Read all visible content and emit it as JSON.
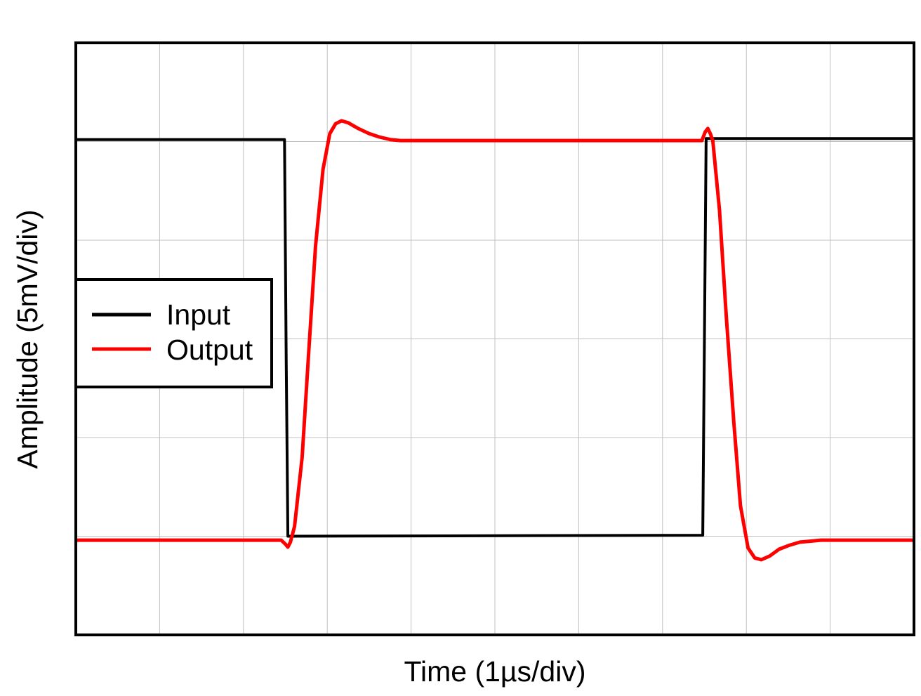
{
  "chart_data": {
    "type": "line",
    "title": "",
    "xlabel": "Time (1µs/div)",
    "ylabel": "Amplitude (5mV/div)",
    "xlim": [
      0,
      10
    ],
    "ylim": [
      0,
      30
    ],
    "x_divisions": 10,
    "y_divisions": 6,
    "grid": true,
    "legend_position": "center-left",
    "series": [
      {
        "name": "Input",
        "color": "#000000",
        "points": [
          [
            0,
            25.1
          ],
          [
            2.49,
            25.1
          ],
          [
            2.51,
            14.0
          ],
          [
            2.53,
            5.0
          ],
          [
            7.48,
            5.05
          ],
          [
            7.5,
            15.0
          ],
          [
            7.52,
            25.15
          ],
          [
            10,
            25.15
          ]
        ]
      },
      {
        "name": "Output",
        "color": "#ff0000",
        "points": [
          [
            0,
            4.8
          ],
          [
            2.45,
            4.8
          ],
          [
            2.5,
            4.6
          ],
          [
            2.53,
            4.45
          ],
          [
            2.56,
            4.7
          ],
          [
            2.61,
            5.5
          ],
          [
            2.7,
            9.0
          ],
          [
            2.78,
            14.4
          ],
          [
            2.86,
            19.7
          ],
          [
            2.95,
            23.6
          ],
          [
            3.03,
            25.4
          ],
          [
            3.1,
            25.9
          ],
          [
            3.17,
            26.05
          ],
          [
            3.25,
            25.95
          ],
          [
            3.37,
            25.66
          ],
          [
            3.5,
            25.4
          ],
          [
            3.62,
            25.23
          ],
          [
            3.75,
            25.1
          ],
          [
            3.87,
            25.05
          ],
          [
            7.47,
            25.05
          ],
          [
            7.51,
            25.5
          ],
          [
            7.54,
            25.66
          ],
          [
            7.57,
            25.4
          ],
          [
            7.6,
            25.05
          ],
          [
            7.68,
            21.5
          ],
          [
            7.76,
            16.2
          ],
          [
            7.85,
            10.8
          ],
          [
            7.93,
            6.55
          ],
          [
            8.02,
            4.41
          ],
          [
            8.1,
            3.9
          ],
          [
            8.18,
            3.81
          ],
          [
            8.28,
            4.0
          ],
          [
            8.39,
            4.34
          ],
          [
            8.52,
            4.55
          ],
          [
            8.64,
            4.7
          ],
          [
            8.89,
            4.8
          ],
          [
            10,
            4.8
          ]
        ]
      }
    ]
  }
}
